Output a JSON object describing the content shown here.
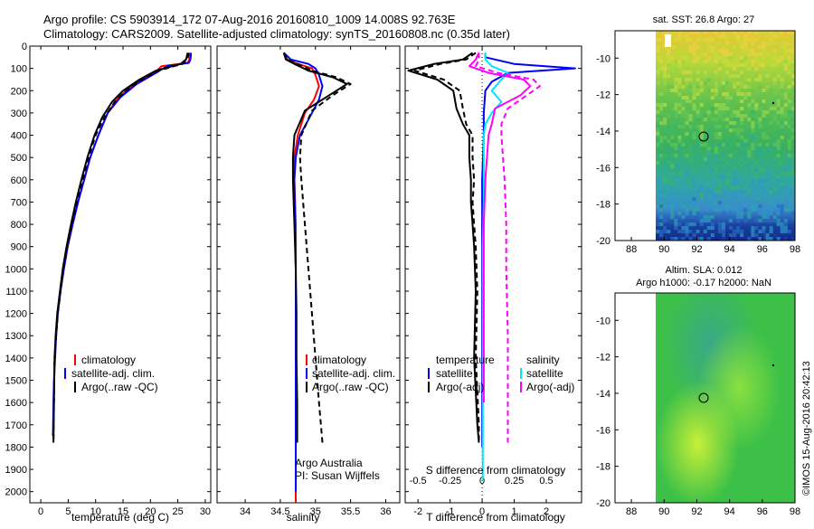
{
  "header": {
    "line1": "Argo profile: CS 5903914_172 07-Aug-2016 20160810_1009 14.008S 92.763E",
    "line2": "Climatology: CARS2009. Satellite-adjusted climatology: synTS_20160808.nc (0.35d later)"
  },
  "side_stamp": "©IMOS 15-Aug-2016 20:42:13",
  "colors": {
    "climatology": "#ff0000",
    "satellite": "#0000ff",
    "argo": "#000000",
    "salinity_sat": "#00e5ff",
    "salinity_argo": "#ff00ff"
  },
  "chart_data": [
    {
      "id": "temperature",
      "type": "line",
      "xlabel": "temperature (deg C)",
      "ylabel": "",
      "xlim": [
        -2,
        31
      ],
      "ylim": [
        2050,
        0
      ],
      "xticks": [
        0,
        5,
        10,
        15,
        20,
        25,
        30
      ],
      "yticks": [
        0,
        100,
        200,
        300,
        400,
        500,
        600,
        700,
        800,
        900,
        1000,
        1100,
        1200,
        1300,
        1400,
        1500,
        1600,
        1700,
        1800,
        1900,
        2000
      ],
      "legend": [
        "climatology",
        "satellite-adj. clim.",
        "Argo(..raw -QC)"
      ],
      "series": [
        {
          "name": "climatology",
          "color": "#ff0000",
          "dash": "",
          "x": [
            27.2,
            27.1,
            26.8,
            22.0,
            20.8,
            17.0,
            14.2,
            12.2,
            10.5,
            9.0,
            7.9,
            6.8,
            5.8,
            4.9,
            4.2,
            3.6,
            3.1,
            2.8
          ],
          "y": [
            30,
            60,
            75,
            90,
            120,
            170,
            230,
            300,
            400,
            500,
            600,
            700,
            800,
            900,
            1000,
            1100,
            1200,
            1300
          ]
        },
        {
          "name": "satellite-adj. clim.",
          "color": "#0000ff",
          "dash": "",
          "x": [
            27.4,
            27.3,
            27.0,
            23.0,
            21.0,
            17.5,
            14.5,
            12.2,
            10.5,
            9.0,
            7.9,
            6.8,
            5.8,
            4.9,
            4.2,
            3.6,
            3.1,
            2.8,
            2.6,
            2.4,
            2.3,
            2.2
          ],
          "y": [
            30,
            60,
            75,
            90,
            120,
            170,
            230,
            300,
            400,
            500,
            600,
            700,
            800,
            900,
            1000,
            1100,
            1200,
            1300,
            1400,
            1500,
            1600,
            1750
          ]
        },
        {
          "name": "Argo(..raw -QC)",
          "color": "#000000",
          "dash": "",
          "x": [
            26.8,
            26.5,
            25.5,
            21.0,
            18.0,
            15.0,
            13.0,
            11.2,
            9.8,
            8.5,
            7.4,
            6.4,
            5.5,
            4.7,
            4.0,
            3.5,
            3.0,
            2.7,
            2.5,
            2.3
          ],
          "y": [
            30,
            60,
            80,
            110,
            150,
            200,
            250,
            320,
            400,
            500,
            600,
            700,
            800,
            900,
            1000,
            1100,
            1200,
            1300,
            1400,
            1780
          ]
        },
        {
          "name": "Argo(..raw -QC)",
          "color": "#000000",
          "dash": "6,4",
          "x": [
            27.0,
            26.7,
            25.8,
            21.5,
            18.5,
            15.5,
            13.5,
            11.6,
            10.0,
            8.7,
            7.6,
            6.6,
            5.6,
            4.8,
            4.1,
            3.6,
            3.1,
            2.8,
            2.5,
            2.3
          ],
          "y": [
            30,
            60,
            80,
            110,
            150,
            200,
            250,
            320,
            400,
            500,
            600,
            700,
            800,
            900,
            1000,
            1100,
            1200,
            1300,
            1400,
            1780
          ]
        }
      ]
    },
    {
      "id": "salinity",
      "type": "line",
      "xlabel": "salinity",
      "ylabel": "",
      "xlim": [
        33.6,
        36.2
      ],
      "ylim": [
        2050,
        0
      ],
      "xticks": [
        34,
        34.5,
        35,
        35.5,
        36
      ],
      "legend": [
        "climatology",
        "satellite-adj. clim.",
        "Argo(..raw -QC)"
      ],
      "annotation": [
        "Argo Australia",
        "PI: Susan Wijffels"
      ],
      "series": [
        {
          "name": "climatology",
          "color": "#ff0000",
          "dash": "",
          "x": [
            34.55,
            34.6,
            34.75,
            34.95,
            35.0,
            35.05,
            34.98,
            34.85,
            34.75,
            34.7,
            34.7,
            34.72,
            34.72,
            34.72,
            34.72,
            34.72,
            34.72,
            34.72
          ],
          "y": [
            30,
            60,
            80,
            100,
            130,
            180,
            240,
            300,
            400,
            500,
            600,
            800,
            1000,
            1200,
            1400,
            1600,
            1800,
            2050
          ]
        },
        {
          "name": "satellite-adj. clim.",
          "color": "#0000ff",
          "dash": "",
          "x": [
            34.55,
            34.65,
            34.9,
            35.0,
            35.05,
            35.1,
            35.05,
            34.9,
            34.78,
            34.72,
            34.7,
            34.71,
            34.72,
            34.72,
            34.72,
            34.72,
            34.72,
            34.72
          ],
          "y": [
            30,
            60,
            80,
            100,
            130,
            180,
            240,
            330,
            400,
            500,
            600,
            800,
            1000,
            1200,
            1400,
            1600,
            1800,
            2000
          ]
        },
        {
          "name": "Argo(..raw -QC)",
          "color": "#000000",
          "dash": "",
          "x": [
            34.55,
            34.58,
            34.7,
            34.9,
            35.25,
            35.45,
            35.2,
            34.85,
            34.7,
            34.68,
            34.68,
            34.7,
            34.72,
            34.73,
            34.73,
            34.74,
            34.74
          ],
          "y": [
            30,
            60,
            80,
            110,
            140,
            170,
            220,
            290,
            400,
            500,
            600,
            800,
            1000,
            1200,
            1400,
            1600,
            1780
          ]
        },
        {
          "name": "Argo(..raw -QC)",
          "color": "#000000",
          "dash": "6,4",
          "x": [
            34.55,
            34.6,
            34.75,
            34.95,
            35.3,
            35.5,
            35.25,
            34.95,
            34.8,
            34.78,
            34.8,
            34.85,
            34.9,
            34.95,
            35.0,
            35.05,
            35.1
          ],
          "y": [
            30,
            60,
            80,
            110,
            140,
            170,
            220,
            290,
            400,
            500,
            600,
            800,
            1000,
            1200,
            1400,
            1600,
            1780
          ]
        }
      ]
    },
    {
      "id": "difference",
      "type": "line",
      "xlabel": "T difference from climatology",
      "x2label": "S difference from climatology",
      "xlim": [
        -2.4,
        3.1
      ],
      "ylim": [
        2050,
        0
      ],
      "xticks": [
        -2,
        -1,
        0,
        1,
        2
      ],
      "x2ticks": [
        "-0.5",
        "-0.25",
        "0",
        "0.25",
        "0.5"
      ],
      "legend_left_title": "temperature",
      "legend_left": [
        "satellite",
        "Argo(-adj)"
      ],
      "legend_right_title": "salinity",
      "legend_right": [
        "satellite",
        "Argo(-adj)"
      ],
      "series": [
        {
          "name": "temperature satellite",
          "color": "#0000ff",
          "dash": "",
          "x": [
            0.1,
            0.1,
            1.0,
            2.9,
            0.8,
            0.3,
            0.1,
            0.05,
            0.05,
            0.0,
            0.0,
            0.0,
            0.0,
            0.0
          ],
          "y": [
            30,
            50,
            80,
            100,
            120,
            160,
            200,
            300,
            400,
            600,
            900,
            1200,
            1500,
            1800
          ]
        },
        {
          "name": "temperature Argo(-adj)",
          "color": "#000000",
          "dash": "",
          "x": [
            -0.3,
            -0.6,
            -1.5,
            -2.3,
            -1.4,
            -0.9,
            -0.8,
            -0.6,
            -0.4,
            -0.4,
            -0.35,
            -0.35,
            -0.3,
            -0.25,
            -0.2,
            -0.25,
            -0.15,
            -0.1
          ],
          "y": [
            30,
            60,
            80,
            110,
            150,
            200,
            280,
            350,
            400,
            500,
            600,
            700,
            800,
            900,
            1100,
            1400,
            1700,
            1780
          ]
        },
        {
          "name": "temperature Argo(-adj)",
          "color": "#000000",
          "dash": "6,4",
          "x": [
            -0.2,
            -0.5,
            -1.3,
            -2.1,
            -1.2,
            -0.7,
            -0.6,
            -0.5,
            -0.3,
            -0.3,
            -0.25,
            -0.3,
            -0.25,
            -0.2,
            -0.15,
            -0.2,
            -0.1,
            -0.1
          ],
          "y": [
            30,
            60,
            80,
            110,
            150,
            200,
            280,
            350,
            400,
            500,
            600,
            700,
            800,
            900,
            1100,
            1400,
            1700,
            1780
          ]
        },
        {
          "name": "salinity satellite",
          "color": "#00e5ff",
          "dash": "",
          "x": [
            0.1,
            0.1,
            0.3,
            0.8,
            0.6,
            0.3,
            0.6,
            0.3,
            0.1,
            0.05,
            0.05,
            0.05,
            0.02,
            0.02,
            0.02,
            0.02,
            0.02
          ],
          "y": [
            30,
            60,
            90,
            120,
            150,
            200,
            250,
            300,
            350,
            400,
            500,
            700,
            900,
            1200,
            1500,
            1800,
            1950
          ]
        },
        {
          "name": "salinity Argo(-adj)",
          "color": "#ff00ff",
          "dash": "",
          "x": [
            -0.1,
            -0.2,
            -0.4,
            0.2,
            1.3,
            1.5,
            1.2,
            0.4,
            0.3,
            0.2,
            0.15,
            0.1,
            0.05,
            0.05,
            0.05,
            0.05
          ],
          "y": [
            30,
            60,
            90,
            120,
            150,
            180,
            220,
            280,
            350,
            400,
            500,
            600,
            800,
            1000,
            1300,
            1600
          ]
        },
        {
          "name": "salinity Argo(-adj)",
          "color": "#ff00ff",
          "dash": "6,4",
          "x": [
            -0.1,
            -0.1,
            -0.2,
            0.5,
            1.6,
            1.8,
            1.4,
            0.8,
            0.6,
            0.6,
            0.65,
            0.7,
            0.75,
            0.75,
            0.8,
            0.8
          ],
          "y": [
            30,
            60,
            90,
            120,
            150,
            180,
            220,
            280,
            350,
            400,
            500,
            600,
            800,
            1000,
            1300,
            1780
          ]
        }
      ]
    },
    {
      "id": "map_sst",
      "type": "heatmap",
      "title": "sat. SST: 26.8 Argo: 27",
      "xlim": [
        87,
        98
      ],
      "ylim": [
        -20,
        -8.5
      ],
      "xticks": [
        88,
        90,
        92,
        94,
        96,
        98
      ],
      "yticks": [
        -20,
        -18,
        -16,
        -14,
        -12,
        -10
      ],
      "float_position": [
        92.763,
        -14.008
      ]
    },
    {
      "id": "map_sla",
      "type": "heatmap",
      "title": "Altim. SLA: 0.012",
      "subtitle": "Argo h1000: -0.17 h2000: NaN",
      "xlim": [
        87,
        98
      ],
      "ylim": [
        -20,
        -8.5
      ],
      "xticks": [
        88,
        90,
        92,
        94,
        96,
        98
      ],
      "yticks": [
        -20,
        -18,
        -16,
        -14,
        -12,
        -10
      ],
      "float_position": [
        92.763,
        -14.008
      ]
    }
  ]
}
